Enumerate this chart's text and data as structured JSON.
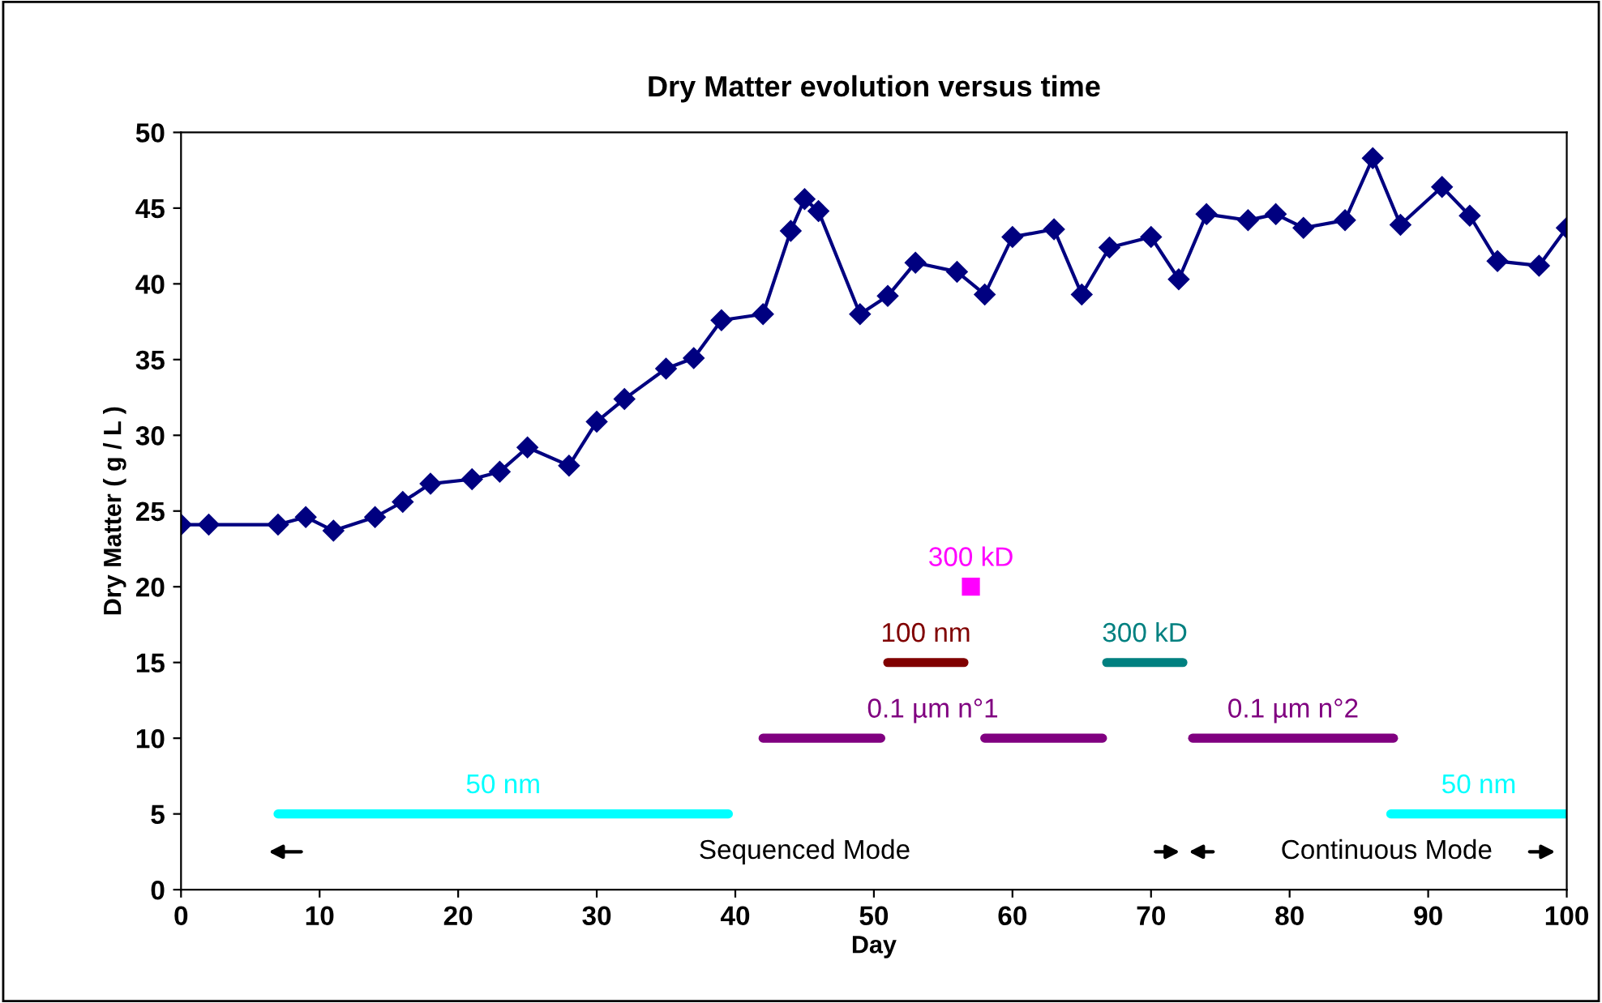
{
  "chart_data": {
    "type": "line",
    "title": "Dry Matter evolution versus time",
    "xlabel": "Day",
    "ylabel": "Dry Matter ( g / L )",
    "xlim": [
      0,
      100
    ],
    "xticks": [
      0,
      10,
      20,
      30,
      40,
      50,
      60,
      70,
      80,
      90,
      100
    ],
    "ylim": [
      0,
      50
    ],
    "yticks": [
      0,
      5,
      10,
      15,
      20,
      25,
      30,
      35,
      40,
      45,
      50
    ],
    "grid": false,
    "legend": false,
    "line_style": "solid",
    "series": [
      {
        "type": "line",
        "color": "#000080",
        "marker": "diamond",
        "x": [
          0,
          2,
          7,
          9,
          11,
          14,
          16,
          18,
          21,
          23,
          25,
          28,
          30,
          32,
          35,
          37,
          39,
          42,
          44,
          45,
          46,
          49,
          51,
          53,
          56,
          58,
          60,
          63,
          65,
          67,
          70,
          72,
          74,
          77,
          79,
          81,
          84,
          86,
          88,
          91,
          93,
          95,
          98,
          100
        ],
        "values": [
          24.1,
          24.1,
          24.1,
          24.6,
          23.7,
          24.6,
          25.6,
          26.8,
          27.1,
          27.6,
          29.2,
          28.0,
          30.9,
          32.4,
          34.4,
          35.1,
          37.6,
          38.0,
          43.5,
          45.6,
          44.8,
          38.0,
          39.2,
          41.4,
          40.8,
          39.3,
          43.1,
          43.6,
          39.3,
          42.4,
          43.1,
          40.3,
          44.6,
          44.2,
          44.6,
          43.7,
          44.2,
          48.3,
          43.9,
          46.4,
          44.5,
          41.5,
          41.2,
          43.7
        ]
      },
      {
        "type": "line",
        "name": "50 nm",
        "color": "#00ffff",
        "x": [
          7,
          39.5
        ],
        "values": [
          5,
          5
        ]
      },
      {
        "type": "line",
        "name": "0.1 µm n°1",
        "color": "#800080",
        "x": [
          42,
          50.5,
          54,
          58,
          66.5
        ],
        "values": [
          10,
          10,
          null,
          10,
          10
        ]
      },
      {
        "type": "line",
        "name": "100 nm",
        "color": "#800000",
        "x": [
          51,
          56.5
        ],
        "values": [
          15,
          15
        ]
      },
      {
        "type": "scatter",
        "name": "300 kD",
        "color": "#ff00ff",
        "marker": "square",
        "x": [
          57
        ],
        "values": [
          20
        ]
      },
      {
        "type": "line",
        "name": "300 kD",
        "color": "#008080",
        "x": [
          66.8,
          72.3
        ],
        "values": [
          15,
          15
        ]
      },
      {
        "type": "line",
        "name": "0.1 µm n°2",
        "color": "#800080",
        "x": [
          73,
          87.5
        ],
        "values": [
          10,
          10
        ]
      },
      {
        "type": "line",
        "name": "50 nm",
        "color": "#00ffff",
        "x": [
          87.3,
          100
        ],
        "values": [
          5,
          5
        ]
      }
    ],
    "annotations": [
      "Sequenced Mode",
      "Continuous Mode"
    ]
  }
}
